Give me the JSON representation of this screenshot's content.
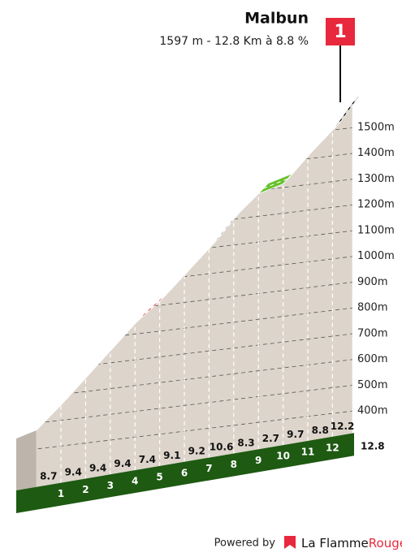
{
  "chart_data": {
    "type": "profile",
    "title": "Malbun",
    "subtitle": "1597 m - 12.8 Km à 8.8 %",
    "flag_label": "1",
    "start_elevation": 472,
    "xlim": [
      0,
      12.8
    ],
    "xticks": [
      1,
      2,
      3,
      4,
      5,
      6,
      7,
      8,
      9,
      10,
      11,
      12,
      12.8
    ],
    "values": [
      8.7,
      9.4,
      9.4,
      9.4,
      7.4,
      9.1,
      9.2,
      10.6,
      8.3,
      2.7,
      9.7,
      8.8,
      12.2
    ],
    "colors": [
      "#e8283c",
      "#111111",
      "#111111",
      "#111111",
      "#e8283c",
      "#111111",
      "#111111",
      "#111111",
      "#e8283c",
      "#66c22a",
      "#111111",
      "#e8283c",
      "#111111"
    ],
    "ylim": [
      400,
      1500
    ],
    "yticks": [
      {
        "value": 400,
        "label": "400m"
      },
      {
        "value": 500,
        "label": "500m"
      },
      {
        "value": 600,
        "label": "600m"
      },
      {
        "value": 700,
        "label": "700m"
      },
      {
        "value": 800,
        "label": "800m"
      },
      {
        "value": 900,
        "label": "900m"
      },
      {
        "value": 1000,
        "label": "1000m"
      },
      {
        "value": 1100,
        "label": "1100m"
      },
      {
        "value": 1200,
        "label": "1200m"
      },
      {
        "value": 1300,
        "label": "1300m"
      },
      {
        "value": 1400,
        "label": "1400m"
      },
      {
        "value": 1500,
        "label": "1500m"
      }
    ],
    "grid": true
  },
  "footer": {
    "powered_by": "Powered by",
    "brand": "La Flamme",
    "brand_accent": "Rouge"
  }
}
